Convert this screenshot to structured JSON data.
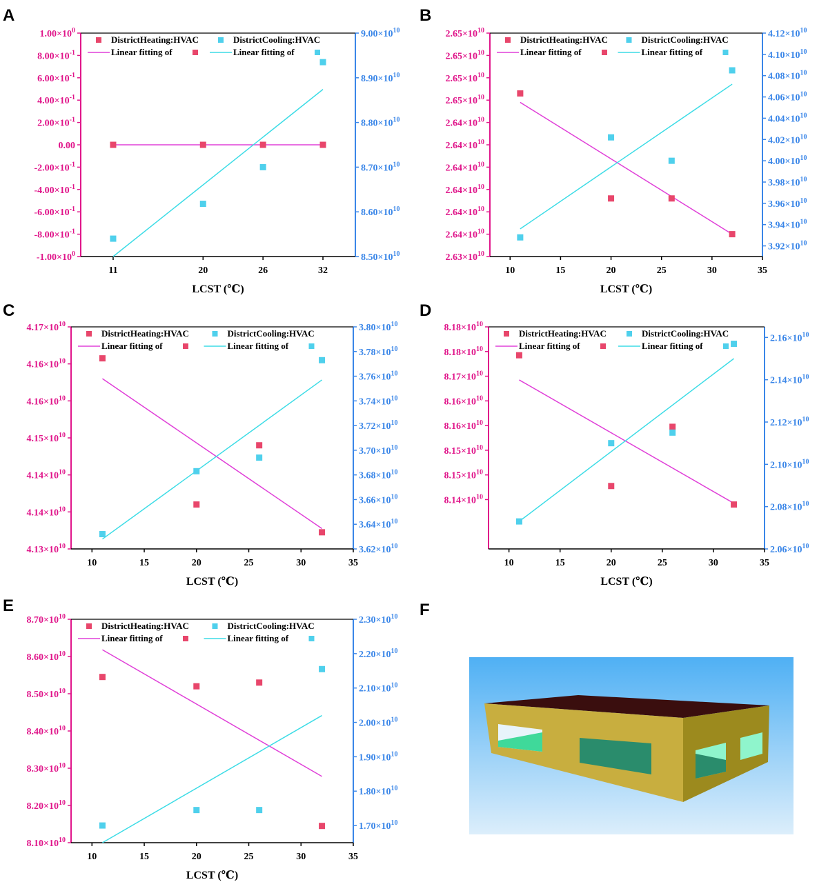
{
  "colors": {
    "heating": "#e8466b",
    "cooling": "#4fd0ec",
    "heating_axis": "#e0158a",
    "cooling_axis": "#3a86e8",
    "heating_fit": "#e040d8",
    "cooling_fit": "#3ddce6"
  },
  "legend": {
    "heating_label": "DistrictHeating:HVAC",
    "cooling_label": "DistrictCooling:HVAC",
    "fit_label": "Linear fitting of"
  },
  "chart_data": [
    {
      "panel": "A",
      "type": "scatter",
      "xlabel": "LCST (℃)",
      "x_axis_kind": "categorical",
      "x": [
        11,
        20,
        26,
        32
      ],
      "x_ticks": [
        "11",
        "20",
        "26",
        "32"
      ],
      "left_axis": {
        "range": [
          -1.0,
          1.0
        ],
        "ticks": [
          {
            "v": 1.0,
            "m": "1.00",
            "e": "0"
          },
          {
            "v": 0.8,
            "m": "8.00",
            "e": "-1"
          },
          {
            "v": 0.6,
            "m": "6.00",
            "e": "-1"
          },
          {
            "v": 0.4,
            "m": "4.00",
            "e": "-1"
          },
          {
            "v": 0.2,
            "m": "2.00",
            "e": "-1"
          },
          {
            "v": 0.0,
            "m": "0.00",
            "e": ""
          },
          {
            "v": -0.2,
            "m": "-2.00",
            "e": "-1"
          },
          {
            "v": -0.4,
            "m": "-4.00",
            "e": "-1"
          },
          {
            "v": -0.6,
            "m": "-6.00",
            "e": "-1"
          },
          {
            "v": -0.8,
            "m": "-8.00",
            "e": "-1"
          },
          {
            "v": -1.0,
            "m": "-1.00",
            "e": "0"
          }
        ]
      },
      "right_axis": {
        "range": [
          85000000000.0,
          90000000000.0
        ],
        "ticks": [
          {
            "v": 90000000000.0,
            "m": "9.00",
            "e": "10"
          },
          {
            "v": 89000000000.0,
            "m": "8.90",
            "e": "10"
          },
          {
            "v": 88000000000.0,
            "m": "8.80",
            "e": "10"
          },
          {
            "v": 87000000000.0,
            "m": "8.70",
            "e": "10"
          },
          {
            "v": 86000000000.0,
            "m": "8.60",
            "e": "10"
          },
          {
            "v": 85000000000.0,
            "m": "8.50",
            "e": "10"
          }
        ]
      },
      "series": [
        {
          "name": "DistrictHeating:HVAC",
          "axis": "left",
          "values": [
            0,
            0,
            0,
            0
          ],
          "fit": [
            0,
            0
          ]
        },
        {
          "name": "DistrictCooling:HVAC",
          "axis": "right",
          "values": [
            85400000000.0,
            86180000000.0,
            87000000000.0,
            89350000000.0
          ],
          "fit": [
            85000000000.0,
            88740000000.0
          ]
        }
      ]
    },
    {
      "panel": "B",
      "type": "scatter",
      "xlabel": "LCST (℃)",
      "x_axis_kind": "linear",
      "xlim": [
        8,
        35
      ],
      "x": [
        11,
        20,
        26,
        32
      ],
      "x_ticks": [
        "10",
        "15",
        "20",
        "25",
        "30",
        "35"
      ],
      "left_axis": {
        "range": [
          0,
          10
        ],
        "ticks": [
          {
            "v": 10,
            "m": "2.65",
            "e": "10"
          },
          {
            "v": 9,
            "m": "2.65",
            "e": "10"
          },
          {
            "v": 8,
            "m": "2.65",
            "e": "10"
          },
          {
            "v": 7,
            "m": "2.65",
            "e": "10"
          },
          {
            "v": 6,
            "m": "2.64",
            "e": "10"
          },
          {
            "v": 5,
            "m": "2.64",
            "e": "10"
          },
          {
            "v": 4,
            "m": "2.64",
            "e": "10"
          },
          {
            "v": 3,
            "m": "2.64",
            "e": "10"
          },
          {
            "v": 2,
            "m": "2.64",
            "e": "10"
          },
          {
            "v": 1,
            "m": "2.64",
            "e": "10"
          },
          {
            "v": 0,
            "m": "2.63",
            "e": "10"
          }
        ]
      },
      "right_axis": {
        "range": [
          39100000000.0,
          41200000000.0
        ],
        "ticks": [
          {
            "v": 41200000000.0,
            "m": "4.12",
            "e": "10"
          },
          {
            "v": 41000000000.0,
            "m": "4.10",
            "e": "10"
          },
          {
            "v": 40800000000.0,
            "m": "4.08",
            "e": "10"
          },
          {
            "v": 40600000000.0,
            "m": "4.06",
            "e": "10"
          },
          {
            "v": 40400000000.0,
            "m": "4.04",
            "e": "10"
          },
          {
            "v": 40200000000.0,
            "m": "4.02",
            "e": "10"
          },
          {
            "v": 40000000000.0,
            "m": "4.00",
            "e": "10"
          },
          {
            "v": 39800000000.0,
            "m": "3.98",
            "e": "10"
          },
          {
            "v": 39600000000.0,
            "m": "3.96",
            "e": "10"
          },
          {
            "v": 39400000000.0,
            "m": "3.94",
            "e": "10"
          },
          {
            "v": 39200000000.0,
            "m": "3.92",
            "e": "10"
          }
        ]
      },
      "series": [
        {
          "name": "DistrictHeating:HVAC",
          "axis": "left",
          "values": [
            7.3,
            2.6,
            2.6,
            1.0
          ],
          "fit": [
            6.9,
            1.0
          ]
        },
        {
          "name": "DistrictCooling:HVAC",
          "axis": "right",
          "values": [
            39280000000.0,
            40220000000.0,
            40000000000.0,
            40850000000.0
          ],
          "fit": [
            39360000000.0,
            40720000000.0
          ]
        }
      ]
    },
    {
      "panel": "C",
      "type": "scatter",
      "xlabel": "LCST (℃)",
      "x_axis_kind": "linear",
      "xlim": [
        8,
        35
      ],
      "x": [
        11,
        20,
        26,
        32
      ],
      "x_ticks": [
        "10",
        "15",
        "20",
        "25",
        "30",
        "35"
      ],
      "left_axis": {
        "range": [
          0,
          6
        ],
        "ticks": [
          {
            "v": 6,
            "m": "4.17",
            "e": "10"
          },
          {
            "v": 5,
            "m": "4.16",
            "e": "10"
          },
          {
            "v": 4,
            "m": "4.16",
            "e": "10"
          },
          {
            "v": 3,
            "m": "4.15",
            "e": "10"
          },
          {
            "v": 2,
            "m": "4.14",
            "e": "10"
          },
          {
            "v": 1,
            "m": "4.14",
            "e": "10"
          },
          {
            "v": 0,
            "m": "4.13",
            "e": "10"
          }
        ]
      },
      "right_axis": {
        "range": [
          36200000000.0,
          38000000000.0
        ],
        "ticks": [
          {
            "v": 38000000000.0,
            "m": "3.80",
            "e": "10"
          },
          {
            "v": 37800000000.0,
            "m": "3.78",
            "e": "10"
          },
          {
            "v": 37600000000.0,
            "m": "3.76",
            "e": "10"
          },
          {
            "v": 37400000000.0,
            "m": "3.74",
            "e": "10"
          },
          {
            "v": 37200000000.0,
            "m": "3.72",
            "e": "10"
          },
          {
            "v": 37000000000.0,
            "m": "3.70",
            "e": "10"
          },
          {
            "v": 36800000000.0,
            "m": "3.68",
            "e": "10"
          },
          {
            "v": 36600000000.0,
            "m": "3.66",
            "e": "10"
          },
          {
            "v": 36400000000.0,
            "m": "3.64",
            "e": "10"
          },
          {
            "v": 36200000000.0,
            "m": "3.62",
            "e": "10"
          }
        ]
      },
      "series": [
        {
          "name": "DistrictHeating:HVAC",
          "axis": "left",
          "values": [
            5.15,
            1.2,
            2.8,
            0.45
          ],
          "fit": [
            4.6,
            0.55
          ]
        },
        {
          "name": "DistrictCooling:HVAC",
          "axis": "right",
          "values": [
            36320000000.0,
            36830000000.0,
            36940000000.0,
            37730000000.0
          ],
          "fit": [
            36280000000.0,
            37570000000.0
          ]
        }
      ]
    },
    {
      "panel": "D",
      "type": "scatter",
      "xlabel": "LCST (℃)",
      "x_axis_kind": "linear",
      "xlim": [
        8,
        35
      ],
      "x": [
        11,
        20,
        26,
        32
      ],
      "x_ticks": [
        "10",
        "15",
        "20",
        "25",
        "30",
        "35"
      ],
      "left_axis": {
        "range": [
          0,
          9
        ],
        "ticks": [
          {
            "v": 9,
            "m": "8.18",
            "e": "10"
          },
          {
            "v": 8,
            "m": "8.18",
            "e": "10"
          },
          {
            "v": 7,
            "m": "8.17",
            "e": "10"
          },
          {
            "v": 6,
            "m": "8.16",
            "e": "10"
          },
          {
            "v": 5,
            "m": "8.16",
            "e": "10"
          },
          {
            "v": 4,
            "m": "8.15",
            "e": "10"
          },
          {
            "v": 3,
            "m": "8.15",
            "e": "10"
          },
          {
            "v": 2,
            "m": "8.14",
            "e": "10"
          }
        ]
      },
      "right_axis": {
        "range": [
          20600000000.0,
          21650000000.0
        ],
        "ticks": [
          {
            "v": 21600000000.0,
            "m": "2.16",
            "e": "10"
          },
          {
            "v": 21400000000.0,
            "m": "2.14",
            "e": "10"
          },
          {
            "v": 21200000000.0,
            "m": "2.12",
            "e": "10"
          },
          {
            "v": 21000000000.0,
            "m": "2.10",
            "e": "10"
          },
          {
            "v": 20800000000.0,
            "m": "2.08",
            "e": "10"
          },
          {
            "v": 20600000000.0,
            "m": "2.06",
            "e": "10"
          }
        ]
      },
      "series": [
        {
          "name": "DistrictHeating:HVAC",
          "axis": "left",
          "values": [
            7.85,
            2.55,
            4.95,
            1.8
          ],
          "fit": [
            6.85,
            1.85
          ]
        },
        {
          "name": "DistrictCooling:HVAC",
          "axis": "right",
          "values": [
            20730000000.0,
            21100000000.0,
            21150000000.0,
            21570000000.0
          ],
          "fit": [
            20730000000.0,
            21500000000.0
          ]
        }
      ]
    },
    {
      "panel": "E",
      "type": "scatter",
      "xlabel": "LCST (℃)",
      "x_axis_kind": "linear",
      "xlim": [
        8,
        35
      ],
      "x": [
        11,
        20,
        26,
        32
      ],
      "x_ticks": [
        "10",
        "15",
        "20",
        "25",
        "30",
        "35"
      ],
      "left_axis": {
        "range": [
          81000000000.0,
          87000000000.0
        ],
        "ticks": [
          {
            "v": 87000000000.0,
            "m": "8.70",
            "e": "10"
          },
          {
            "v": 86000000000.0,
            "m": "8.60",
            "e": "10"
          },
          {
            "v": 85000000000.0,
            "m": "8.50",
            "e": "10"
          },
          {
            "v": 84000000000.0,
            "m": "8.40",
            "e": "10"
          },
          {
            "v": 83000000000.0,
            "m": "8.30",
            "e": "10"
          },
          {
            "v": 82000000000.0,
            "m": "8.20",
            "e": "10"
          },
          {
            "v": 81000000000.0,
            "m": "8.10",
            "e": "10"
          }
        ]
      },
      "right_axis": {
        "range": [
          16500000000.0,
          23000000000.0
        ],
        "ticks": [
          {
            "v": 23000000000.0,
            "m": "2.30",
            "e": "10"
          },
          {
            "v": 22000000000.0,
            "m": "2.20",
            "e": "10"
          },
          {
            "v": 21000000000.0,
            "m": "2.10",
            "e": "10"
          },
          {
            "v": 20000000000.0,
            "m": "2.00",
            "e": "10"
          },
          {
            "v": 19000000000.0,
            "m": "1.90",
            "e": "10"
          },
          {
            "v": 18000000000.0,
            "m": "1.80",
            "e": "10"
          },
          {
            "v": 17000000000.0,
            "m": "1.70",
            "e": "10"
          }
        ]
      },
      "series": [
        {
          "name": "DistrictHeating:HVAC",
          "axis": "left",
          "values": [
            85450000000.0,
            85200000000.0,
            85300000000.0,
            81450000000.0
          ],
          "fit": [
            86180000000.0,
            82780000000.0
          ]
        },
        {
          "name": "DistrictCooling:HVAC",
          "axis": "right",
          "values": [
            17000000000.0,
            17450000000.0,
            17450000000.0,
            21550000000.0
          ],
          "fit": [
            16500000000.0,
            20200000000.0
          ]
        }
      ]
    }
  ],
  "panel_f": {
    "letter": "F"
  }
}
